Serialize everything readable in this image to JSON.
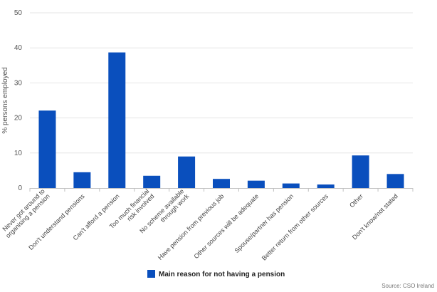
{
  "chart_data": {
    "type": "bar",
    "categories": [
      [
        "Never got around to",
        "organising a pension"
      ],
      [
        "Don't understand pensions"
      ],
      [
        "Can't afford a pension"
      ],
      [
        "Too much financial",
        "risk involved"
      ],
      [
        "No scheme available",
        "through work"
      ],
      [
        "Have pension from previous job"
      ],
      [
        "Other sources will be adequate"
      ],
      [
        "Spouse/partner has pension"
      ],
      [
        "Better return from other sources"
      ],
      [
        "Other"
      ],
      [
        "Don't know/not stated"
      ]
    ],
    "series": [
      {
        "name": "Main reason for not having a pension",
        "color": "#0a4fbd",
        "values": [
          22.1,
          4.5,
          38.7,
          3.5,
          9.0,
          2.6,
          2.1,
          1.3,
          1.0,
          9.3,
          4.0
        ]
      }
    ],
    "ylabel": "% persons employed",
    "xlabel": "",
    "ylim": [
      0,
      50
    ],
    "yticks": [
      0,
      10,
      20,
      30,
      40,
      50
    ],
    "grid": true,
    "legend": "bottom-center",
    "source": "Source: CSO Ireland"
  }
}
